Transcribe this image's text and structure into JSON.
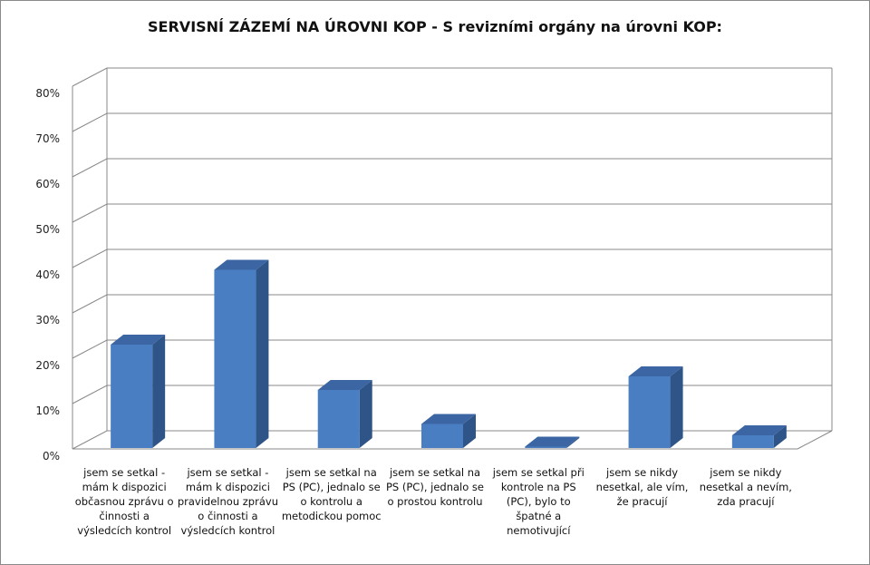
{
  "chart_data": {
    "type": "bar",
    "title": "SERVISNÍ ZÁZEMÍ NA ÚROVNI KOP - S revizními orgány na úrovni KOP:",
    "categories": [
      "jsem se setkal - mám k dispozici občasnou zprávu o činnosti a výsledcích kontrol",
      "jsem se setkal - mám k dispozici pravidelnou zprávu o činnosti a výsledcích kontrol",
      "jsem se setkal na PS (PC), jednalo se o kontrolu a metodickou pomoc",
      "jsem se setkal na PS (PC), jednalo se o prostou kontrolu",
      "jsem se setkal při kontrole na PS (PC), bylo to špatné a nemotivující",
      "jsem se nikdy nesetkal, ale vím, že pracují",
      "jsem se nikdy nesetkal a nevím, zda pracují"
    ],
    "values": [
      23,
      39.5,
      13,
      5.5,
      0.5,
      16,
      3
    ],
    "ylim": [
      0,
      80
    ],
    "yticks": [
      "0%",
      "10%",
      "20%",
      "30%",
      "40%",
      "50%",
      "60%",
      "70%",
      "80%"
    ],
    "grid": true,
    "colors": {
      "bar_front": "#4a7ec2",
      "bar_side": "#2f5487",
      "bar_top": "#3c66a3",
      "grid": "#888888"
    }
  }
}
